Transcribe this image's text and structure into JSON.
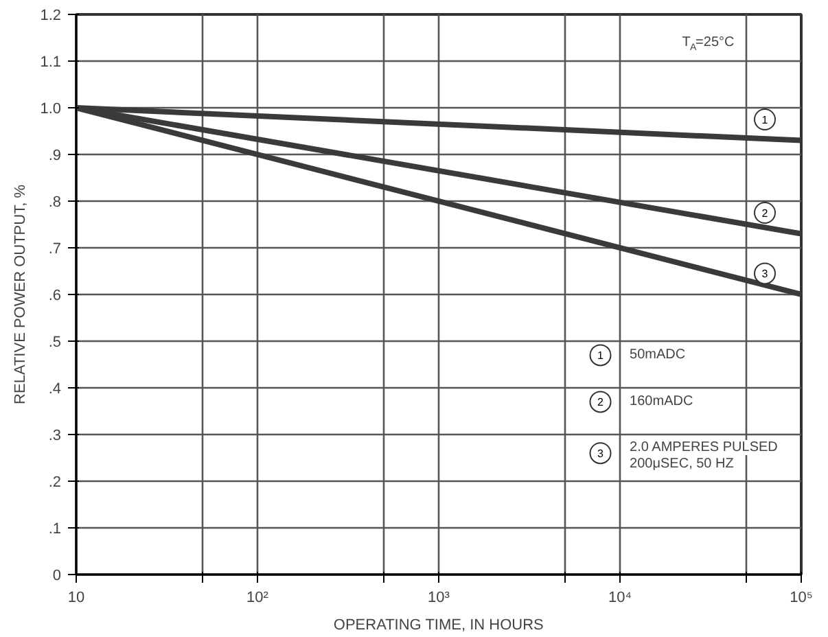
{
  "chart_data": {
    "type": "line",
    "xlabel": "OPERATING TIME, IN HOURS",
    "ylabel": "RELATIVE POWER OUTPUT, %",
    "log": "x",
    "annotations": [
      "T$_{A}$=25°C",
      "50mADC",
      "160mADC",
      "2.0 AMPERES PULSED\n200μSEC, 50 HZ"
    ],
    "series": [
      {
        "name": "1",
        "color": "#3a3a3a",
        "values": [
          1.0,
          0.93
        ]
      },
      {
        "name": "2",
        "color": "#3a3a3a",
        "values": [
          1.0,
          0.73
        ]
      },
      {
        "name": "3",
        "color": "#3a3a3a",
        "values": [
          1.0,
          0.6
        ]
      }
    ],
    "x": [
      10,
      100000
    ],
    "xlim": [
      10,
      100000
    ],
    "ylim": [
      0,
      1.2
    ],
    "xticks": [
      {
        "value": 10,
        "label": "10"
      },
      {
        "value": 50,
        "label": null
      },
      {
        "value": 100,
        "label": "10²"
      },
      {
        "value": 500,
        "label": null
      },
      {
        "value": 1000,
        "label": "10³"
      },
      {
        "value": 5000,
        "label": null
      },
      {
        "value": 10000,
        "label": "10⁴"
      },
      {
        "value": 50000,
        "label": null
      },
      {
        "value": 100000,
        "label": "10⁵"
      }
    ],
    "yticks": [
      0,
      {
        "value": 0.1,
        "label": ".1"
      },
      {
        "value": 0.2,
        "label": ".2"
      },
      {
        "value": 0.3,
        "label": ".3"
      },
      {
        "value": 0.4,
        "label": ".4"
      },
      {
        "value": 0.5,
        "label": ".5"
      },
      {
        "value": 0.6,
        "label": ".6"
      },
      {
        "value": 0.7,
        "label": ".7"
      },
      {
        "value": 0.8,
        "label": ".8"
      },
      {
        "value": 0.9,
        "label": ".9"
      },
      {
        "value": 1.0,
        "label": "1.0"
      },
      {
        "value": 1.1,
        "label": "1.1"
      },
      {
        "value": 1.2,
        "label": "1.2"
      }
    ],
    "grid": true,
    "line_style": "solid"
  }
}
